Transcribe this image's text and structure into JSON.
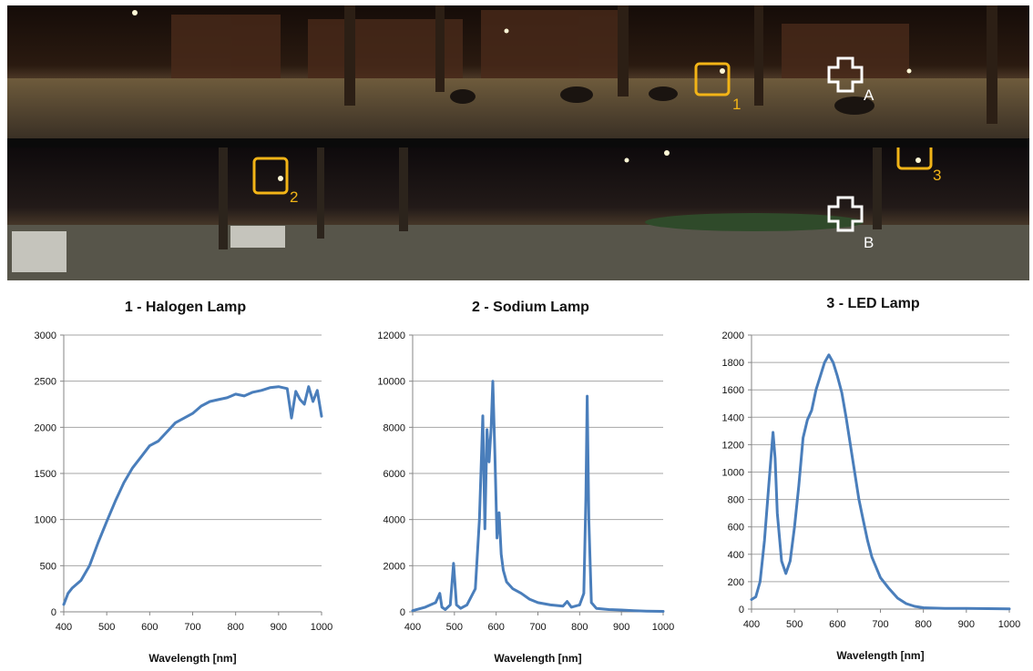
{
  "colors": {
    "series": "#4a7ebb",
    "marker_lamp": "#f2b417",
    "marker_point": "#ffffff",
    "grid": "#a6a6a6",
    "axis": "#868686"
  },
  "panorama": {
    "lamp_markers": [
      "1",
      "2",
      "3"
    ],
    "point_markers": [
      "A",
      "B"
    ]
  },
  "chart_data": [
    {
      "type": "line",
      "title": "1 - Halogen Lamp",
      "xlabel": "Wavelength [nm]",
      "ylabel": "",
      "xlim": [
        400,
        1000
      ],
      "ylim": [
        0,
        3000
      ],
      "xticks": [
        "400",
        "500",
        "600",
        "700",
        "800",
        "900",
        "1000"
      ],
      "yticks": [
        "0",
        "500",
        "1000",
        "1500",
        "2000",
        "2500",
        "3000"
      ],
      "grid": true,
      "series": [
        {
          "x": [
            400,
            410,
            420,
            440,
            460,
            480,
            500,
            520,
            540,
            560,
            580,
            600,
            620,
            640,
            660,
            680,
            700,
            720,
            740,
            760,
            780,
            800,
            820,
            840,
            860,
            880,
            900,
            920,
            930,
            940,
            950,
            960,
            970,
            980,
            990,
            1000
          ],
          "y": [
            80,
            200,
            260,
            340,
            500,
            750,
            980,
            1200,
            1400,
            1560,
            1680,
            1800,
            1850,
            1950,
            2050,
            2100,
            2150,
            2230,
            2280,
            2300,
            2320,
            2360,
            2340,
            2380,
            2400,
            2430,
            2440,
            2420,
            2100,
            2390,
            2300,
            2250,
            2440,
            2280,
            2400,
            2120
          ]
        }
      ]
    },
    {
      "type": "line",
      "title": "2 - Sodium Lamp",
      "xlabel": "Wavelength [nm]",
      "ylabel": "",
      "xlim": [
        400,
        1000
      ],
      "ylim": [
        0,
        12000
      ],
      "xticks": [
        "400",
        "500",
        "600",
        "700",
        "800",
        "900",
        "1000"
      ],
      "yticks": [
        "0",
        "2000",
        "4000",
        "6000",
        "8000",
        "10000",
        "12000"
      ],
      "grid": true,
      "series": [
        {
          "x": [
            400,
            430,
            455,
            465,
            470,
            478,
            490,
            498,
            505,
            515,
            530,
            550,
            560,
            568,
            573,
            578,
            583,
            588,
            592,
            597,
            602,
            607,
            612,
            617,
            625,
            640,
            660,
            680,
            700,
            730,
            760,
            770,
            780,
            800,
            810,
            815,
            818,
            822,
            828,
            840,
            870,
            900,
            930,
            960,
            1000
          ],
          "y": [
            50,
            200,
            400,
            800,
            200,
            100,
            300,
            2100,
            300,
            150,
            300,
            1000,
            4000,
            8500,
            3600,
            7900,
            6500,
            8000,
            10000,
            6800,
            3200,
            4300,
            2500,
            1800,
            1300,
            1000,
            800,
            550,
            400,
            300,
            250,
            450,
            200,
            300,
            800,
            5000,
            9350,
            4000,
            400,
            150,
            100,
            80,
            50,
            30,
            20
          ]
        }
      ]
    },
    {
      "type": "line",
      "title": "3 - LED Lamp",
      "xlabel": "Wavelength [nm]",
      "ylabel": "",
      "xlim": [
        400,
        1000
      ],
      "ylim": [
        0,
        2000
      ],
      "xticks": [
        "400",
        "500",
        "600",
        "700",
        "800",
        "900",
        "1000"
      ],
      "yticks": [
        "0",
        "200",
        "400",
        "600",
        "800",
        "1000",
        "1200",
        "1400",
        "1600",
        "1800",
        "2000"
      ],
      "grid": true,
      "series": [
        {
          "x": [
            400,
            410,
            420,
            430,
            440,
            450,
            455,
            460,
            470,
            480,
            490,
            500,
            510,
            520,
            530,
            540,
            550,
            560,
            570,
            580,
            590,
            600,
            610,
            620,
            630,
            640,
            650,
            660,
            670,
            680,
            700,
            720,
            740,
            760,
            780,
            800,
            850,
            900,
            950,
            1000
          ],
          "y": [
            70,
            90,
            200,
            500,
            900,
            1290,
            1100,
            700,
            350,
            260,
            350,
            600,
            900,
            1250,
            1380,
            1450,
            1600,
            1700,
            1800,
            1855,
            1800,
            1700,
            1580,
            1400,
            1200,
            1000,
            800,
            650,
            500,
            380,
            230,
            150,
            80,
            40,
            20,
            10,
            5,
            5,
            3,
            2
          ]
        }
      ]
    }
  ]
}
